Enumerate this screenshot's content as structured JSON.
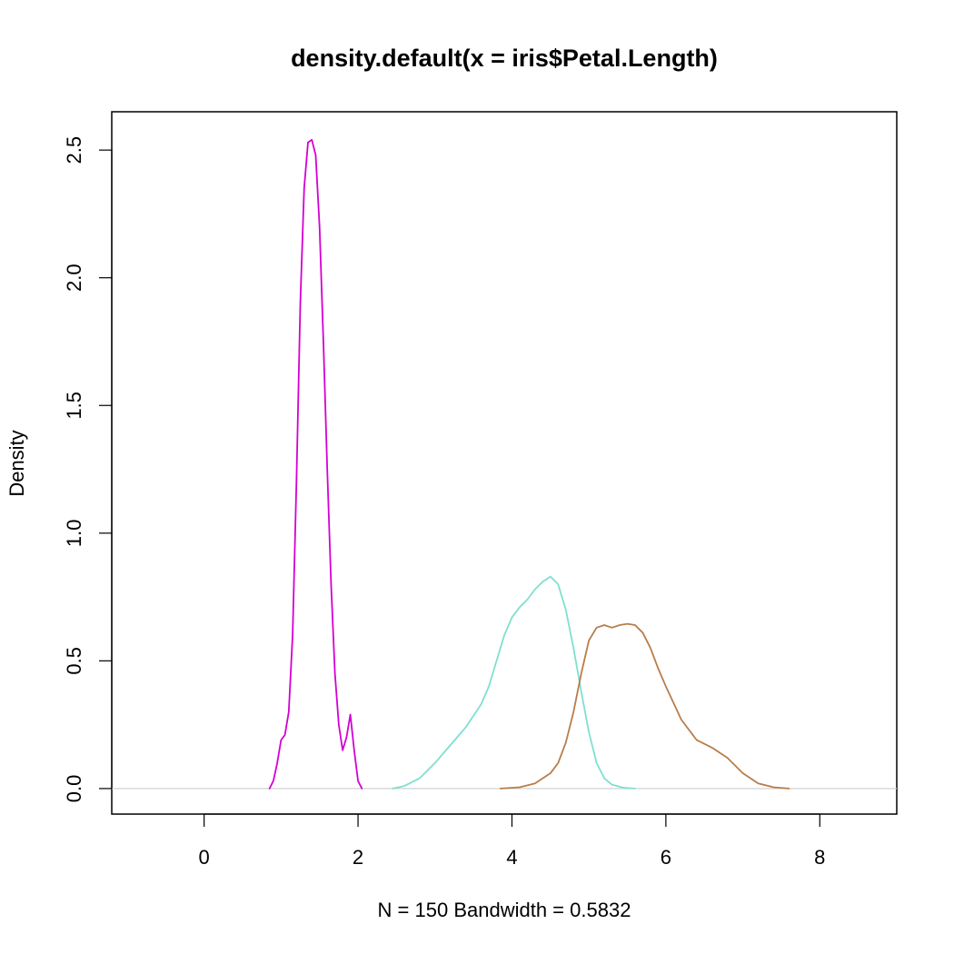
{
  "chart_data": {
    "type": "line",
    "title": "density.default(x = iris$Petal.Length)",
    "xlabel": "N = 150   Bandwidth = 0.5832",
    "ylabel": "Density",
    "xlim": [
      -1.2,
      9.0
    ],
    "ylim": [
      -0.1,
      2.65
    ],
    "xticks": [
      "0",
      "2",
      "4",
      "6",
      "8"
    ],
    "yticks": [
      "0.0",
      "0.5",
      "1.0",
      "1.5",
      "2.0",
      "2.5"
    ],
    "baseline": {
      "y": 0,
      "color": "#d3d3d3"
    },
    "grid": false,
    "legend": "none",
    "series": [
      {
        "color": "#d400d4",
        "x": [
          0.85,
          0.9,
          0.95,
          1.0,
          1.05,
          1.1,
          1.15,
          1.2,
          1.25,
          1.3,
          1.35,
          1.4,
          1.45,
          1.5,
          1.55,
          1.6,
          1.65,
          1.7,
          1.75,
          1.8,
          1.85,
          1.9,
          1.95,
          2.0,
          2.05
        ],
        "y": [
          0.0,
          0.03,
          0.1,
          0.19,
          0.21,
          0.3,
          0.6,
          1.2,
          1.9,
          2.35,
          2.53,
          2.54,
          2.48,
          2.2,
          1.75,
          1.25,
          0.8,
          0.45,
          0.25,
          0.15,
          0.2,
          0.29,
          0.15,
          0.03,
          0.0
        ]
      },
      {
        "color": "#7fdfd0",
        "x": [
          2.45,
          2.6,
          2.8,
          3.0,
          3.2,
          3.4,
          3.6,
          3.7,
          3.8,
          3.9,
          4.0,
          4.1,
          4.2,
          4.3,
          4.4,
          4.5,
          4.6,
          4.7,
          4.8,
          4.9,
          5.0,
          5.1,
          5.2,
          5.3,
          5.45,
          5.6
        ],
        "y": [
          0.0,
          0.01,
          0.04,
          0.1,
          0.17,
          0.24,
          0.33,
          0.4,
          0.5,
          0.6,
          0.67,
          0.71,
          0.74,
          0.78,
          0.81,
          0.83,
          0.8,
          0.7,
          0.55,
          0.38,
          0.22,
          0.1,
          0.04,
          0.015,
          0.003,
          0.0
        ]
      },
      {
        "color": "#b87d4b",
        "x": [
          3.85,
          4.1,
          4.3,
          4.5,
          4.6,
          4.7,
          4.8,
          4.9,
          5.0,
          5.1,
          5.2,
          5.3,
          5.4,
          5.5,
          5.6,
          5.7,
          5.8,
          5.9,
          6.0,
          6.2,
          6.4,
          6.6,
          6.8,
          7.0,
          7.2,
          7.4,
          7.6
        ],
        "y": [
          0.0,
          0.005,
          0.02,
          0.06,
          0.1,
          0.18,
          0.3,
          0.45,
          0.58,
          0.63,
          0.64,
          0.63,
          0.64,
          0.645,
          0.64,
          0.61,
          0.55,
          0.47,
          0.4,
          0.27,
          0.19,
          0.16,
          0.12,
          0.06,
          0.02,
          0.005,
          0.0
        ]
      }
    ]
  }
}
